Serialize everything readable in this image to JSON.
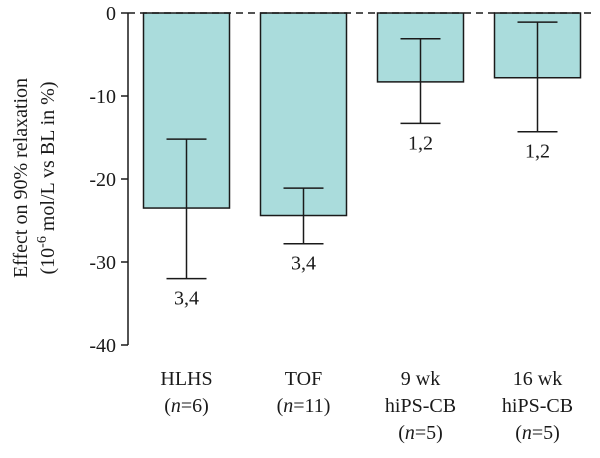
{
  "chart_data": {
    "type": "bar",
    "title": "",
    "ylabel_line1": "Effect on 90% relaxation",
    "ylabel_line2": {
      "prefix": "(10",
      "exponent": "-6",
      "suffix": " mol/L vs BL in %)"
    },
    "ylim": [
      -40,
      0
    ],
    "yticks": [
      0,
      -10,
      -20,
      -30,
      -40
    ],
    "ytick_labels": [
      "0",
      "-10",
      "-20",
      "-30",
      "-40"
    ],
    "reference_line": {
      "y": 0,
      "style": "dashed"
    },
    "bar_color": "#aadcdc",
    "categories": [
      {
        "lines": [
          "HLHS"
        ],
        "n_text": "6"
      },
      {
        "lines": [
          "TOF"
        ],
        "n_text": "11"
      },
      {
        "lines": [
          "9 wk",
          "hiPS-CB"
        ],
        "n_text": "5"
      },
      {
        "lines": [
          "16 wk",
          "hiPS-CB"
        ],
        "n_text": "5"
      }
    ],
    "values": [
      -23.5,
      -24.4,
      -8.3,
      -7.8
    ],
    "error_low": [
      -32.0,
      -27.8,
      -13.3,
      -14.3
    ],
    "error_high": [
      -15.2,
      -21.1,
      -3.1,
      -1.1
    ],
    "significance": [
      "3,4",
      "3,4",
      "1,2",
      "1,2"
    ]
  }
}
